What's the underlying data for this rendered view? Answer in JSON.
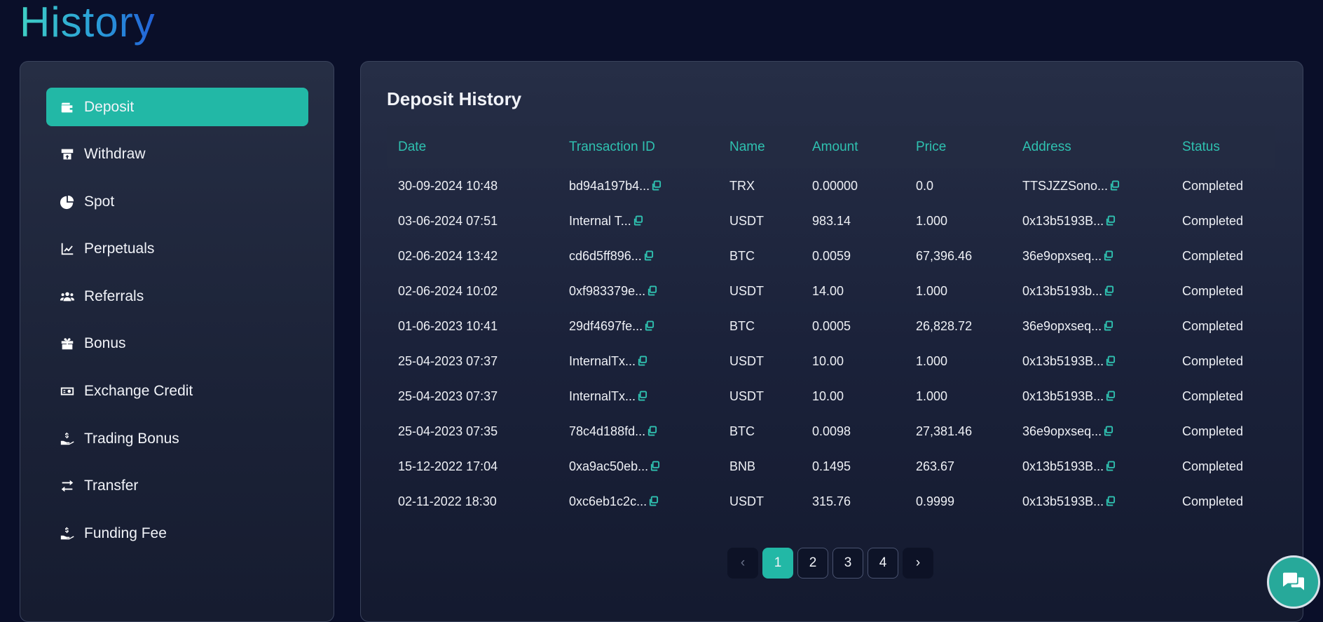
{
  "page": {
    "title": "History"
  },
  "sidebar": {
    "items": [
      {
        "label": "Deposit",
        "icon": "wallet-icon",
        "active": true
      },
      {
        "label": "Withdraw",
        "icon": "withdraw-icon",
        "active": false
      },
      {
        "label": "Spot",
        "icon": "pie-chart-icon",
        "active": false
      },
      {
        "label": "Perpetuals",
        "icon": "line-chart-icon",
        "active": false
      },
      {
        "label": "Referrals",
        "icon": "users-icon",
        "active": false
      },
      {
        "label": "Bonus",
        "icon": "gift-icon",
        "active": false
      },
      {
        "label": "Exchange Credit",
        "icon": "money-bill-icon",
        "active": false
      },
      {
        "label": "Trading Bonus",
        "icon": "hand-coin-icon",
        "active": false
      },
      {
        "label": "Transfer",
        "icon": "transfer-arrows-icon",
        "active": false
      },
      {
        "label": "Funding Fee",
        "icon": "hand-coin-icon",
        "active": false
      }
    ]
  },
  "deposit_history": {
    "title": "Deposit History",
    "columns": [
      "Date",
      "Transaction ID",
      "Name",
      "Amount",
      "Price",
      "Address",
      "Status"
    ],
    "rows": [
      {
        "date": "30-09-2024 10:48",
        "txid": "bd94a197b4...",
        "name": "TRX",
        "amount": "0.00000",
        "price": "0.0",
        "address": "TTSJZZSono...",
        "status": "Completed"
      },
      {
        "date": "03-06-2024 07:51",
        "txid": "Internal T...",
        "name": "USDT",
        "amount": "983.14",
        "price": "1.000",
        "address": "0x13b5193B...",
        "status": "Completed"
      },
      {
        "date": "02-06-2024 13:42",
        "txid": "cd6d5ff896...",
        "name": "BTC",
        "amount": "0.0059",
        "price": "67,396.46",
        "address": "36e9opxseq...",
        "status": "Completed"
      },
      {
        "date": "02-06-2024 10:02",
        "txid": "0xf983379e...",
        "name": "USDT",
        "amount": "14.00",
        "price": "1.000",
        "address": "0x13b5193b...",
        "status": "Completed"
      },
      {
        "date": "01-06-2023 10:41",
        "txid": "29df4697fe...",
        "name": "BTC",
        "amount": "0.0005",
        "price": "26,828.72",
        "address": "36e9opxseq...",
        "status": "Completed"
      },
      {
        "date": "25-04-2023 07:37",
        "txid": "InternalTx...",
        "name": "USDT",
        "amount": "10.00",
        "price": "1.000",
        "address": "0x13b5193B...",
        "status": "Completed"
      },
      {
        "date": "25-04-2023 07:37",
        "txid": "InternalTx...",
        "name": "USDT",
        "amount": "10.00",
        "price": "1.000",
        "address": "0x13b5193B...",
        "status": "Completed"
      },
      {
        "date": "25-04-2023 07:35",
        "txid": "78c4d188fd...",
        "name": "BTC",
        "amount": "0.0098",
        "price": "27,381.46",
        "address": "36e9opxseq...",
        "status": "Completed"
      },
      {
        "date": "15-12-2022 17:04",
        "txid": "0xa9ac50eb...",
        "name": "BNB",
        "amount": "0.1495",
        "price": "263.67",
        "address": "0x13b5193B...",
        "status": "Completed"
      },
      {
        "date": "02-11-2022 18:30",
        "txid": "0xc6eb1c2c...",
        "name": "USDT",
        "amount": "315.76",
        "price": "0.9999",
        "address": "0x13b5193B...",
        "status": "Completed"
      }
    ]
  },
  "pagination": {
    "prev_label": "‹",
    "next_label": "›",
    "pages": [
      "1",
      "2",
      "3",
      "4"
    ],
    "current": "1"
  },
  "chat": {
    "icon": "chat-bubbles-icon"
  },
  "colors": {
    "accent": "#22b8a6",
    "background": "#0a0f29",
    "header_text": "#2fc1b0"
  }
}
